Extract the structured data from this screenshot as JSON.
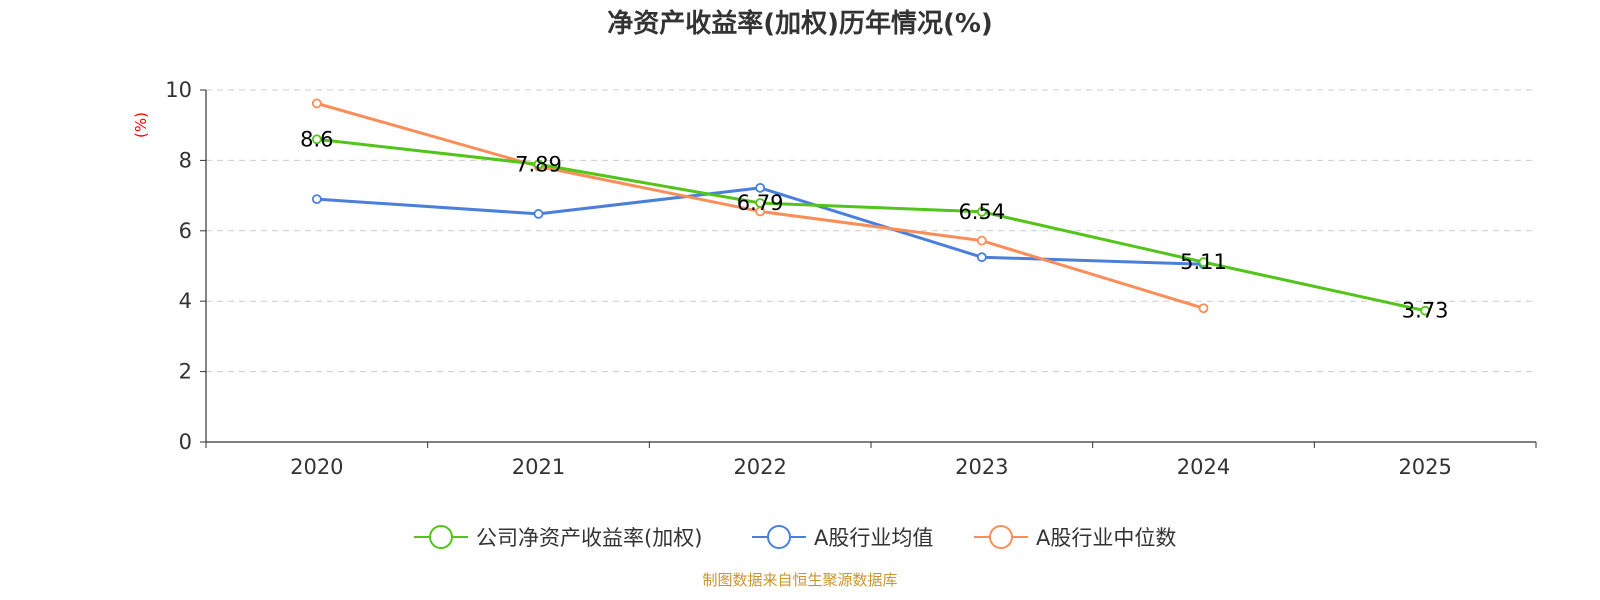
{
  "chart_data": {
    "type": "line",
    "title": "净资产收益率(加权)历年情况(%)",
    "ylabel": "(%)",
    "xlabel": "",
    "categories": [
      "2020",
      "2021",
      "2022",
      "2023",
      "2024",
      "2025"
    ],
    "ylim": [
      0,
      10
    ],
    "yticks": [
      0,
      2,
      4,
      6,
      8,
      10
    ],
    "grid": true,
    "legend_position": "bottom-center",
    "series": [
      {
        "name": "公司净资产收益率(加权)",
        "color": "#52c41a",
        "values": [
          8.6,
          7.89,
          6.79,
          6.54,
          5.11,
          3.73
        ],
        "labels": [
          "8.6",
          "7.89",
          "6.79",
          "6.54",
          "5.11",
          "3.73"
        ]
      },
      {
        "name": "A股行业均值",
        "color": "#4a7fdb",
        "values": [
          6.9,
          6.48,
          7.22,
          5.25,
          5.05,
          null
        ]
      },
      {
        "name": "A股行业中位数",
        "color": "#fa8e5a",
        "values": [
          9.62,
          7.83,
          6.55,
          5.72,
          3.8,
          null
        ]
      }
    ],
    "source": "制图数据来自恒生聚源数据库"
  }
}
